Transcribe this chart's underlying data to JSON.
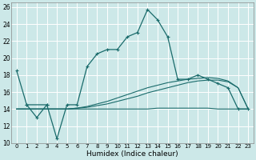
{
  "xlabel": "Humidex (Indice chaleur)",
  "bg_color": "#cce8e8",
  "grid_color": "#ffffff",
  "line_color": "#1a6b6b",
  "xlim": [
    -0.5,
    23.5
  ],
  "ylim": [
    10,
    26.5
  ],
  "xticks": [
    0,
    1,
    2,
    3,
    4,
    5,
    6,
    7,
    8,
    9,
    10,
    11,
    12,
    13,
    14,
    15,
    16,
    17,
    18,
    19,
    20,
    21,
    22,
    23
  ],
  "yticks": [
    10,
    12,
    14,
    16,
    18,
    20,
    22,
    24,
    26
  ],
  "series1_x": [
    0,
    1,
    3,
    4,
    5,
    6,
    7,
    8,
    9,
    10,
    11,
    12,
    13,
    14,
    15,
    16,
    17,
    18,
    19,
    20,
    21,
    22,
    23
  ],
  "series1_y": [
    18.5,
    14.5,
    14.5,
    10.5,
    14.5,
    14.5,
    19.0,
    20.5,
    21.0,
    21.0,
    22.5,
    23.0,
    25.7,
    24.5,
    22.5,
    17.5,
    17.5,
    18.0,
    17.5,
    17.0,
    16.5,
    14.0,
    14.0
  ],
  "series2_x": [
    1,
    2,
    3
  ],
  "series2_y": [
    14.5,
    13.0,
    14.5
  ],
  "series3_x": [
    0,
    1,
    2,
    3,
    4,
    5,
    6,
    7,
    8,
    9,
    10,
    11,
    12,
    13,
    14,
    15,
    16,
    17,
    18,
    19,
    20,
    21,
    22,
    23
  ],
  "series3_y": [
    14.0,
    14.0,
    14.0,
    14.0,
    14.0,
    14.0,
    14.0,
    14.0,
    14.0,
    14.0,
    14.0,
    14.0,
    14.0,
    14.0,
    14.1,
    14.1,
    14.1,
    14.1,
    14.1,
    14.1,
    14.0,
    14.0,
    14.0,
    14.0
  ],
  "series4_x": [
    0,
    1,
    2,
    3,
    4,
    5,
    6,
    7,
    8,
    9,
    10,
    11,
    12,
    13,
    14,
    15,
    16,
    17,
    18,
    19,
    20,
    21,
    22,
    23
  ],
  "series4_y": [
    14.0,
    14.0,
    14.0,
    14.0,
    14.0,
    14.0,
    14.1,
    14.2,
    14.4,
    14.6,
    14.9,
    15.2,
    15.5,
    15.9,
    16.2,
    16.5,
    16.8,
    17.1,
    17.3,
    17.4,
    17.4,
    17.2,
    16.5,
    14.0
  ],
  "series5_x": [
    0,
    1,
    2,
    3,
    4,
    5,
    6,
    7,
    8,
    9,
    10,
    11,
    12,
    13,
    14,
    15,
    16,
    17,
    18,
    19,
    20,
    21,
    22,
    23
  ],
  "series5_y": [
    14.0,
    14.0,
    14.0,
    14.0,
    14.0,
    14.0,
    14.1,
    14.3,
    14.6,
    14.9,
    15.3,
    15.7,
    16.1,
    16.5,
    16.8,
    17.1,
    17.3,
    17.5,
    17.6,
    17.7,
    17.6,
    17.3,
    16.5,
    14.0
  ]
}
